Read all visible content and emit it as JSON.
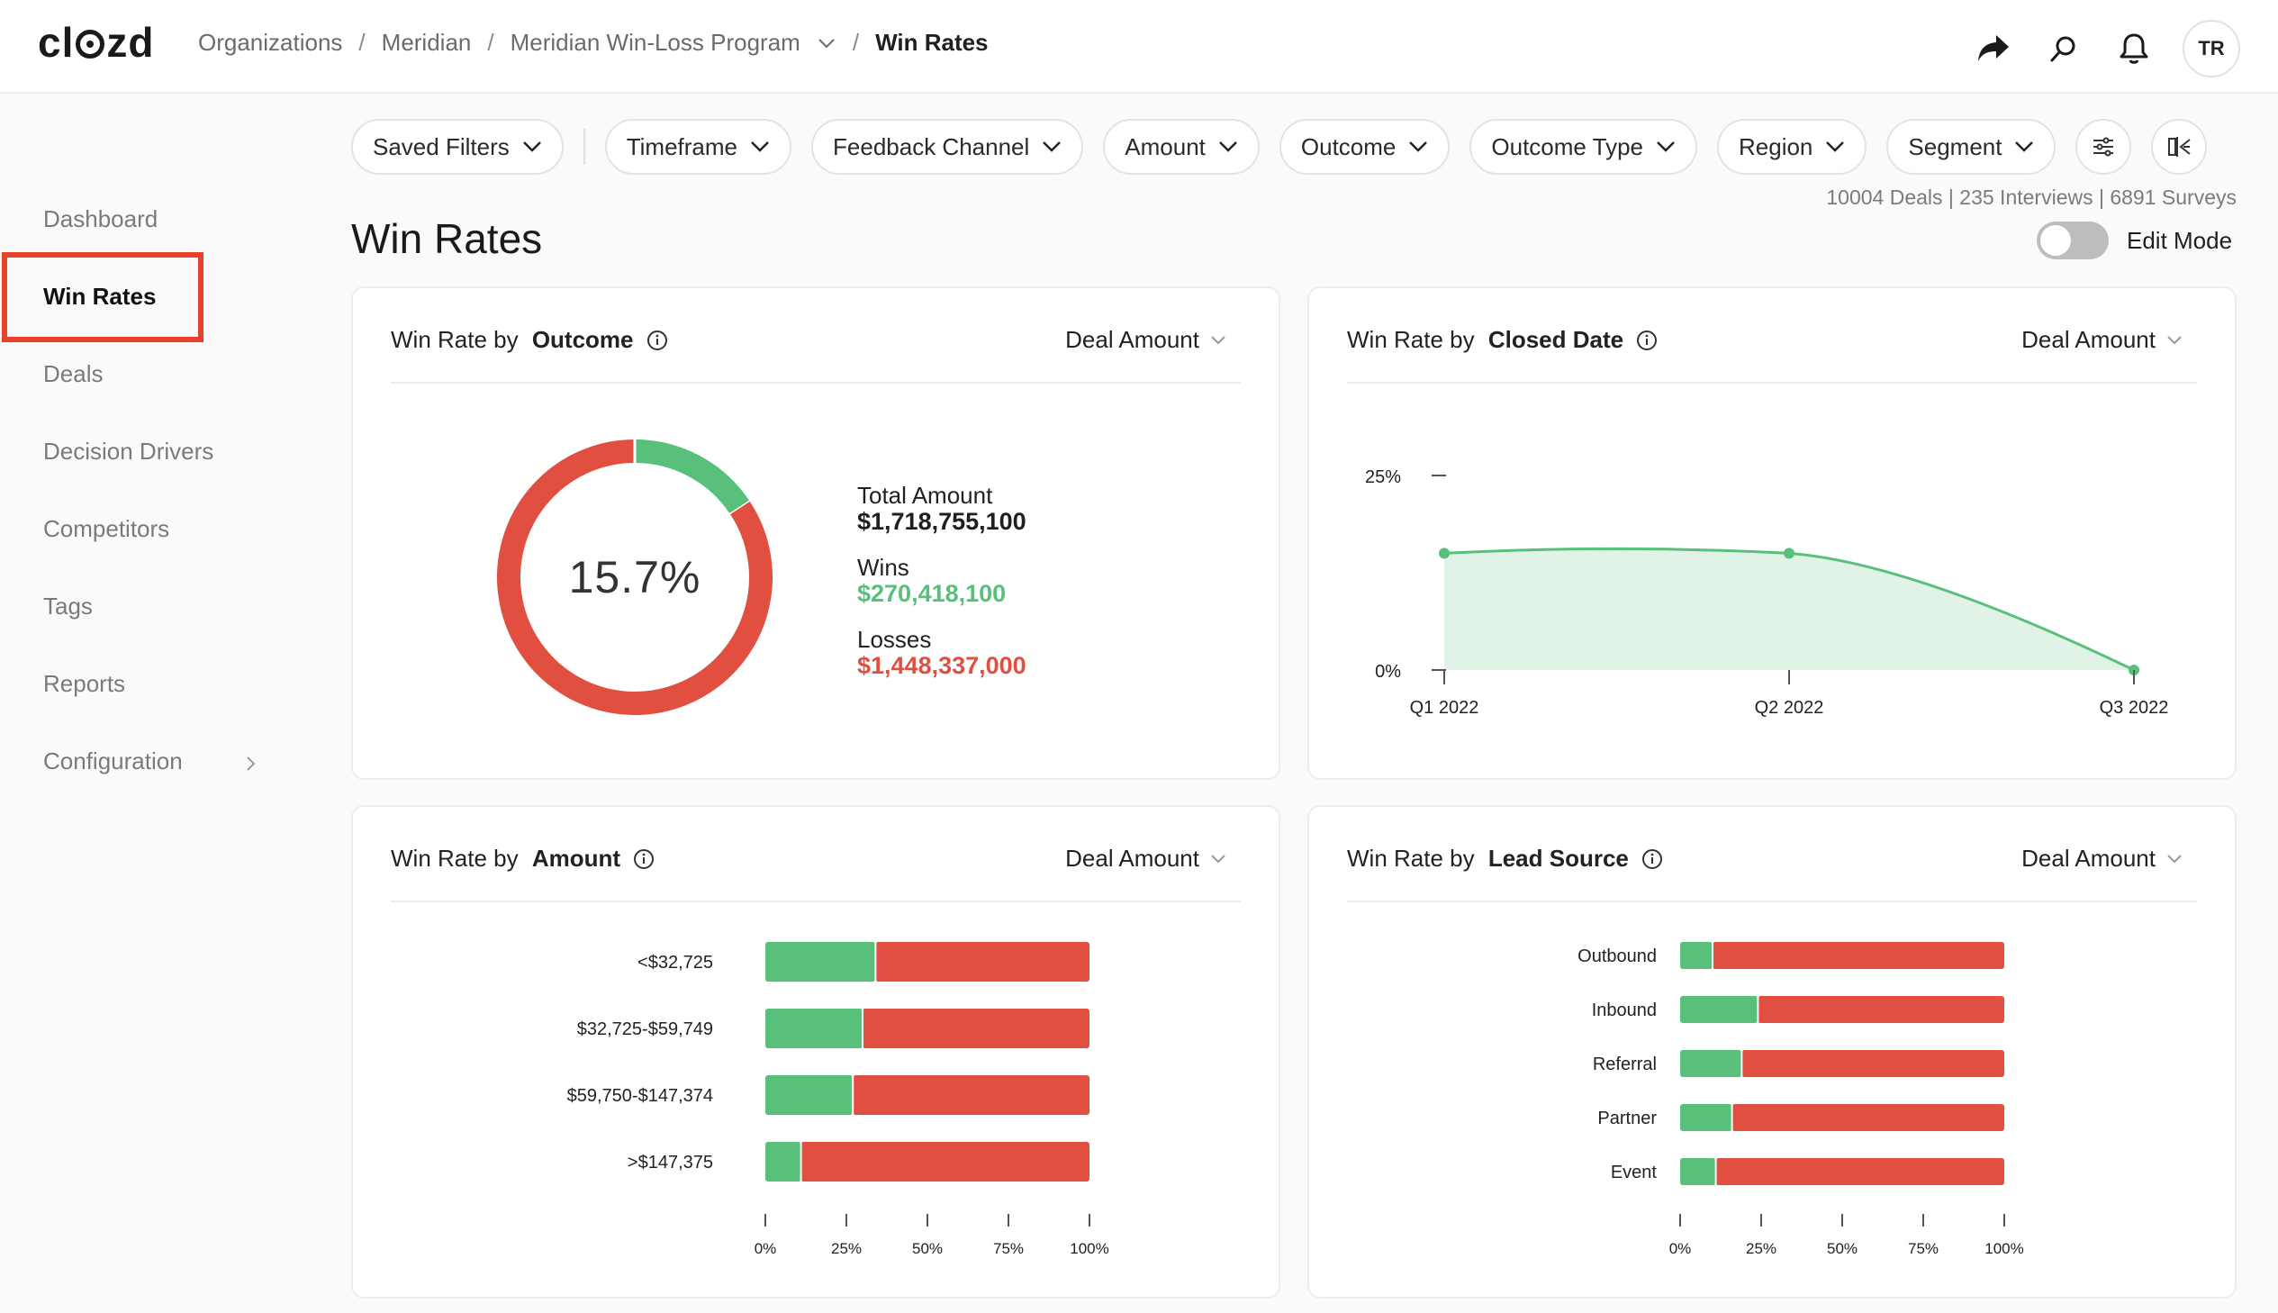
{
  "header": {
    "logo": "clozd",
    "breadcrumb": {
      "organizations": "Organizations",
      "org": "Meridian",
      "program": "Meridian Win-Loss Program",
      "current": "Win Rates",
      "separator": "/"
    },
    "avatar_initials": "TR"
  },
  "sidebar": {
    "items": [
      {
        "label": "Dashboard"
      },
      {
        "label": "Win Rates"
      },
      {
        "label": "Deals"
      },
      {
        "label": "Decision Drivers"
      },
      {
        "label": "Competitors"
      },
      {
        "label": "Tags"
      },
      {
        "label": "Reports"
      },
      {
        "label": "Configuration"
      }
    ],
    "active": "Win Rates"
  },
  "filters": {
    "saved": "Saved Filters",
    "items": [
      "Timeframe",
      "Feedback Channel",
      "Amount",
      "Outcome",
      "Outcome Type",
      "Region",
      "Segment"
    ]
  },
  "stats": "10004 Deals | 235 Interviews | 6891 Surveys",
  "page": {
    "title": "Win Rates",
    "edit_mode_label": "Edit Mode",
    "edit_mode_on": false
  },
  "colors": {
    "win": "#58c07b",
    "loss": "#e14f40",
    "area_fill": "#e1f3e6",
    "highlight": "#e8402a"
  },
  "cards": {
    "outcome": {
      "title_prefix": "Win Rate by ",
      "title_bold": "Outcome",
      "dropdown": "Deal Amount",
      "center": "15.7%",
      "total_label": "Total Amount",
      "total_value": "$1,718,755,100",
      "wins_label": "Wins",
      "wins_value": "$270,418,100",
      "losses_label": "Losses",
      "losses_value": "$1,448,337,000"
    },
    "closed": {
      "title_prefix": "Win Rate by ",
      "title_bold": "Closed Date",
      "dropdown": "Deal Amount"
    },
    "amount": {
      "title_prefix": "Win Rate by ",
      "title_bold": "Amount",
      "dropdown": "Deal Amount"
    },
    "lead": {
      "title_prefix": "Win Rate by ",
      "title_bold": "Lead Source",
      "dropdown": "Deal Amount"
    }
  },
  "chart_data": [
    {
      "id": "outcome",
      "type": "pie",
      "categories": [
        "Wins",
        "Losses"
      ],
      "values": [
        270418100,
        1448337000
      ],
      "center_label": "15.7%"
    },
    {
      "id": "closed",
      "type": "area",
      "categories": [
        "Q1 2022",
        "Q2 2022",
        "Q3 2022"
      ],
      "values": [
        0.15,
        0.15,
        0
      ],
      "ylim": [
        0,
        0.25
      ],
      "yticks": [
        "0%",
        "25%"
      ]
    },
    {
      "id": "amount",
      "type": "bar",
      "orientation": "horizontal",
      "stacked": true,
      "categories": [
        "<$32,725",
        "$32,725-$59,749",
        "$59,750-$147,374",
        ">$147,375"
      ],
      "series": [
        {
          "name": "Win",
          "values": [
            0.34,
            0.3,
            0.27,
            0.11
          ]
        },
        {
          "name": "Loss",
          "values": [
            0.66,
            0.7,
            0.73,
            0.89
          ]
        }
      ],
      "xticks": [
        "0%",
        "25%",
        "50%",
        "75%",
        "100%"
      ]
    },
    {
      "id": "lead",
      "type": "bar",
      "orientation": "horizontal",
      "stacked": true,
      "categories": [
        "Outbound",
        "Inbound",
        "Referral",
        "Partner",
        "Event"
      ],
      "series": [
        {
          "name": "Win",
          "values": [
            0.1,
            0.24,
            0.19,
            0.16,
            0.11
          ]
        },
        {
          "name": "Loss",
          "values": [
            0.9,
            0.76,
            0.81,
            0.84,
            0.89
          ]
        }
      ],
      "xticks": [
        "0%",
        "25%",
        "50%",
        "75%",
        "100%"
      ]
    }
  ]
}
